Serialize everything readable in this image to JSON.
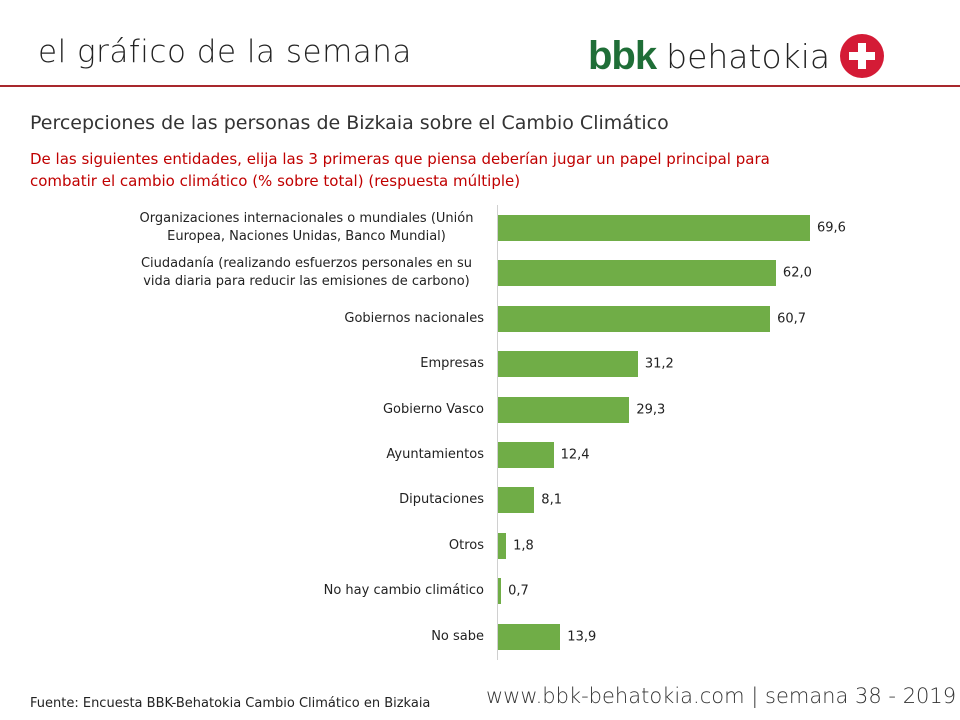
{
  "header": {
    "title": "el gráfico de la semana",
    "logo_bbk": "bbk",
    "logo_name": "behatokia"
  },
  "colors": {
    "bar": "#70ad47",
    "accent": "#c00000",
    "brand": "#1f6e37"
  },
  "chart_data": {
    "type": "bar",
    "orientation": "horizontal",
    "title": "Percepciones de las personas de Bizkaia sobre el Cambio Climático",
    "subtitle": "De las siguientes entidades, elija las 3 primeras que piensa deberían jugar un papel principal para combatir el cambio climático (% sobre total) (respuesta múltiple)",
    "categories": [
      "Organizaciones internacionales o mundiales (Unión Europea, Naciones Unidas, Banco Mundial)",
      "Ciudadanía (realizando esfuerzos personales en su vida diaria para reducir las emisiones de carbono)",
      "Gobiernos nacionales",
      "Empresas",
      "Gobierno Vasco",
      "Ayuntamientos",
      "Diputaciones",
      "Otros",
      "No hay cambio climático",
      "No sabe"
    ],
    "values": [
      69.6,
      62.0,
      60.7,
      31.2,
      29.3,
      12.4,
      8.1,
      1.8,
      0.7,
      13.9
    ],
    "labels": [
      "69,6",
      "62,0",
      "60,7",
      "31,2",
      "29,3",
      "12,4",
      "8,1",
      "1,8",
      "0,7",
      "13,9"
    ],
    "xlim": [
      0,
      80
    ],
    "grid": false
  },
  "footer": {
    "source": "Fuente:  Encuesta BBK-Behatokia Cambio Climático en Bizkaia",
    "site": "www.bbk-behatokia.com | semana 38 - 2019"
  }
}
